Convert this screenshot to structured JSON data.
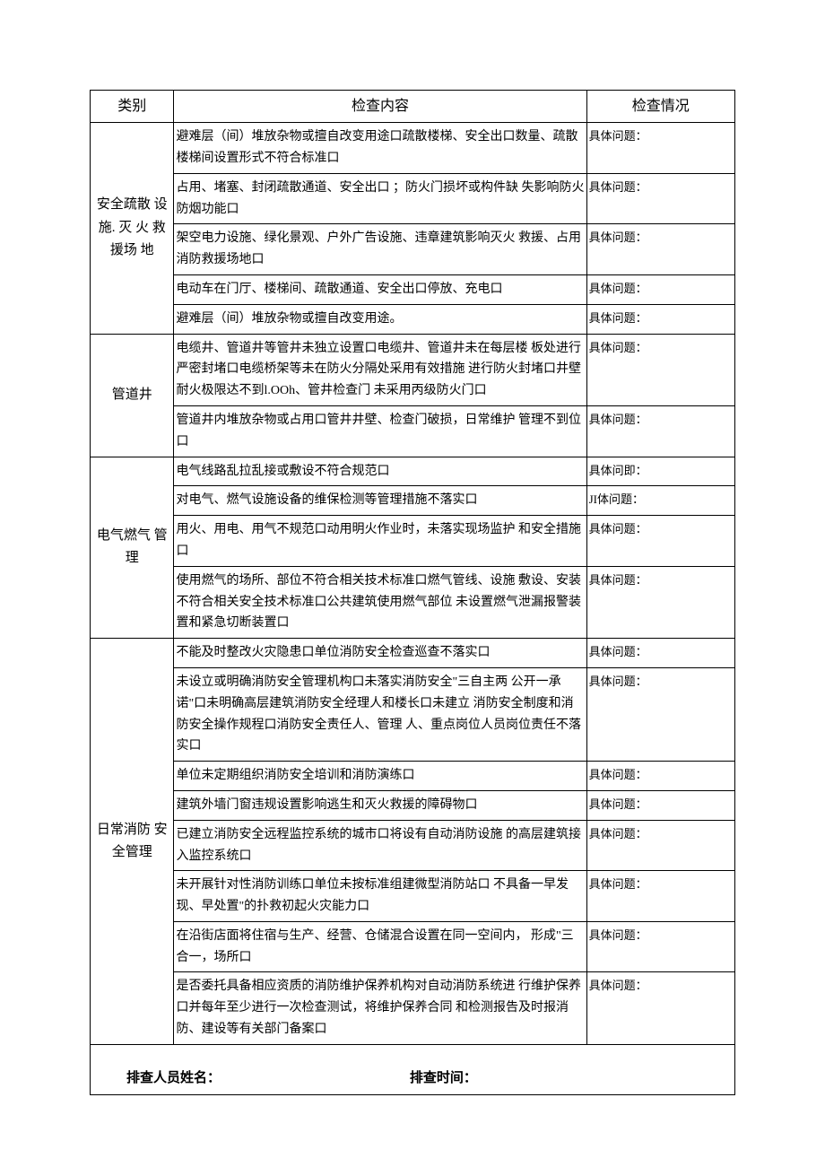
{
  "headers": {
    "category": "类别",
    "content": "检查内容",
    "status": "检查情况"
  },
  "status_label_default": "具体问题：",
  "status_label_alt1": "具体问即：",
  "status_label_alt2": "JI体问题：",
  "categories": [
    {
      "name": "安全疏散 设施. 灭 火 救援场 地",
      "rows": [
        {
          "content": "避难层（间）堆放杂物或擅自改变用途口疏散楼梯、安全出口数量、疏散楼梯间设置形式不符合标准口",
          "status": "具体问题："
        },
        {
          "content": "占用、堵塞、封闭疏散通道、安全出口 ；防火门损坏或构件缺 失影响防火防烟功能口",
          "status": "具体问题："
        },
        {
          "content": "架空电力设施、绿化景观、户外广告设施、违章建筑影响灭火 救援、占用消防救援场地口",
          "status": "具体问题："
        },
        {
          "content": "电动车在门厅、楼梯间、疏散通道、安全出口停放、充电口",
          "status": "具体问题："
        },
        {
          "content": "避难层（间）堆放杂物或擅自改变用途。",
          "status": "具体问题："
        }
      ]
    },
    {
      "name": "管道井",
      "rows": [
        {
          "content": "电缆井、管道井等管井未独立设置口电缆井、管道井未在每层楼 板处进行严密封堵口电缆桥架等未在防火分隔处采用有效措施 进行防火封堵口井壁耐火极限达不到l.OOh、管井检查门 未采用丙级防火门口",
          "status": "具体问题："
        },
        {
          "content": "管道井内堆放杂物或占用口管井井壁、检查门破损，日常维护 管理不到位口",
          "status": "具体问题："
        }
      ]
    },
    {
      "name": "电气燃气 管理",
      "rows": [
        {
          "content": "电气线路乱拉乱接或敷设不符合规范口",
          "status": "具体问即："
        },
        {
          "content": "对电气、燃气设施设备的维保检测等管理措施不落实口",
          "status": "JI体问题："
        },
        {
          "content": "用火、用电、用气不规范口动用明火作业时，未落实现场监护 和安全措施口",
          "status": "具体问题："
        },
        {
          "content": "使用燃气的场所、部位不符合相关技术标准口燃气管线、设施 敷设、安装不符合相关安全技术标准口公共建筑使用燃气部位 未设置燃气泄漏报警装置和紧急切断装置口",
          "status": "具体问题："
        }
      ]
    },
    {
      "name": "日常消防 安全管理",
      "rows": [
        {
          "content": "不能及时整改火灾隐患口单位消防安全检查巡查不落实口",
          "status": "具体问题："
        },
        {
          "content": "未设立或明确消防安全管理机构口未落实消防安全\"三自主两 公开一承诺\"口未明确高层建筑消防安全经理人和楼长口未建立 消防安全制度和消防安全操作规程口消防安全责任人、管理 人、重点岗位人员岗位责任不落实口",
          "status": "具体问题："
        },
        {
          "content": "单位未定期组织消防安全培训和消防演练口",
          "status": "具体问题："
        },
        {
          "content": "建筑外墙门窗违规设置影响逃生和灭火救援的障碍物口",
          "status": "具体问题："
        },
        {
          "content": "已建立消防安全远程监控系统的城市口将设有自动消防设施 的高层建筑接入监控系统口",
          "status": "具体问题："
        },
        {
          "content": "未开展针对性消防训练口单位未按标准组建微型消防站口 不具备一早发现、早处置\"的扑救初起火灾能力口",
          "status": "具体问题："
        },
        {
          "content": "在沿街店面将住宿与生产、经营、仓储混合设置在同一空间内， 形成\"三合一，场所口",
          "status": "具体问题："
        },
        {
          "content": "是否委托具备相应资质的消防维护保养机构对自动消防系统进 行维护保养口并每年至少进行一次检查测试，将维护保养合同 和检测报告及时报消防、建设等有关部门备案口",
          "status": "具体问题："
        }
      ]
    }
  ],
  "footer": {
    "inspector_label": "排查人员姓名：",
    "time_label": "排查时间："
  }
}
